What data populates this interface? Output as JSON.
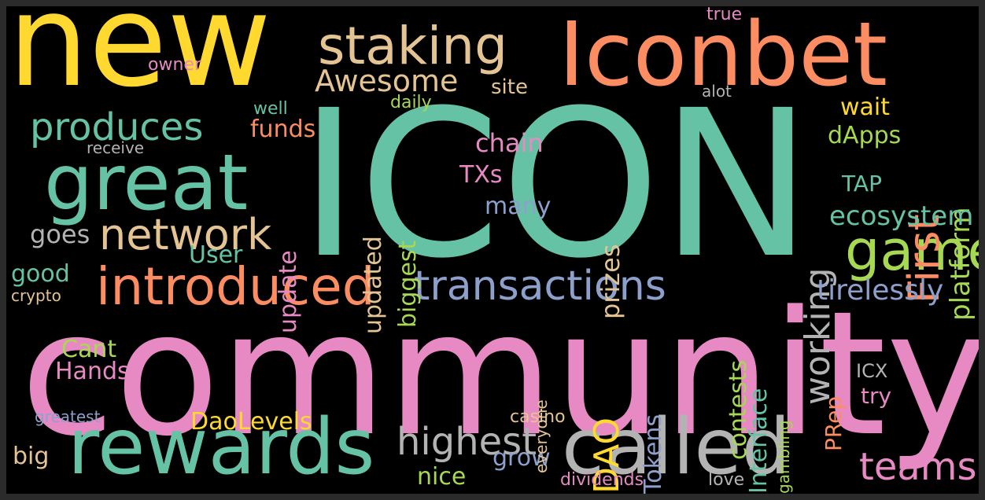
{
  "palette": {
    "teal": "#66c2a5",
    "orange": "#fc8d62",
    "blue": "#8da0cb",
    "pink": "#e78ac3",
    "green": "#a6d854",
    "yellow": "#ffd92f",
    "tan": "#e5c494",
    "gray": "#b3b3b3",
    "background": "#000000"
  },
  "words": {
    "icon": "ICON",
    "community": "community",
    "new": "new",
    "iconbet": "Iconbet",
    "staking": "staking",
    "awesome": "Awesome",
    "great": "great",
    "produces": "produces",
    "rewards": "rewards",
    "called": "called",
    "introduced": "introduced",
    "transactions": "transactions",
    "network": "network",
    "game": "game",
    "teams": "teams",
    "first": "First",
    "working": "working",
    "platform": "platform",
    "ecosystem": "ecosystem",
    "tirelessly": "tirelessly",
    "highest": "highest",
    "chain": "chain",
    "dao": "DAO",
    "daolevels": "DaoLevels",
    "hands": "Hands",
    "cant": "Cant",
    "good": "good",
    "goes": "goes",
    "user": "User",
    "update": "update",
    "updated": "updated",
    "biggest": "biggest",
    "funds": "funds",
    "txs": "TXs",
    "many": "many",
    "prizes": "prizes",
    "contests": "contests",
    "interface": "Interface",
    "tokens": "Tokens",
    "prep": "PRep",
    "try": "try",
    "icx": "ICX",
    "tap": "TAP",
    "dapps": "dApps",
    "wait": "wait",
    "site": "site",
    "daily": "daily",
    "well": "well",
    "receive": "receive",
    "owner": "owner",
    "true": "true",
    "alot": "alot",
    "crypto": "crypto",
    "greatest": "greatest",
    "big": "big",
    "nice": "nice",
    "grow": "grow",
    "casino": "casino",
    "dividends": "dividends",
    "love": "love",
    "everyone": "everyone",
    "gambling": "gambling"
  }
}
